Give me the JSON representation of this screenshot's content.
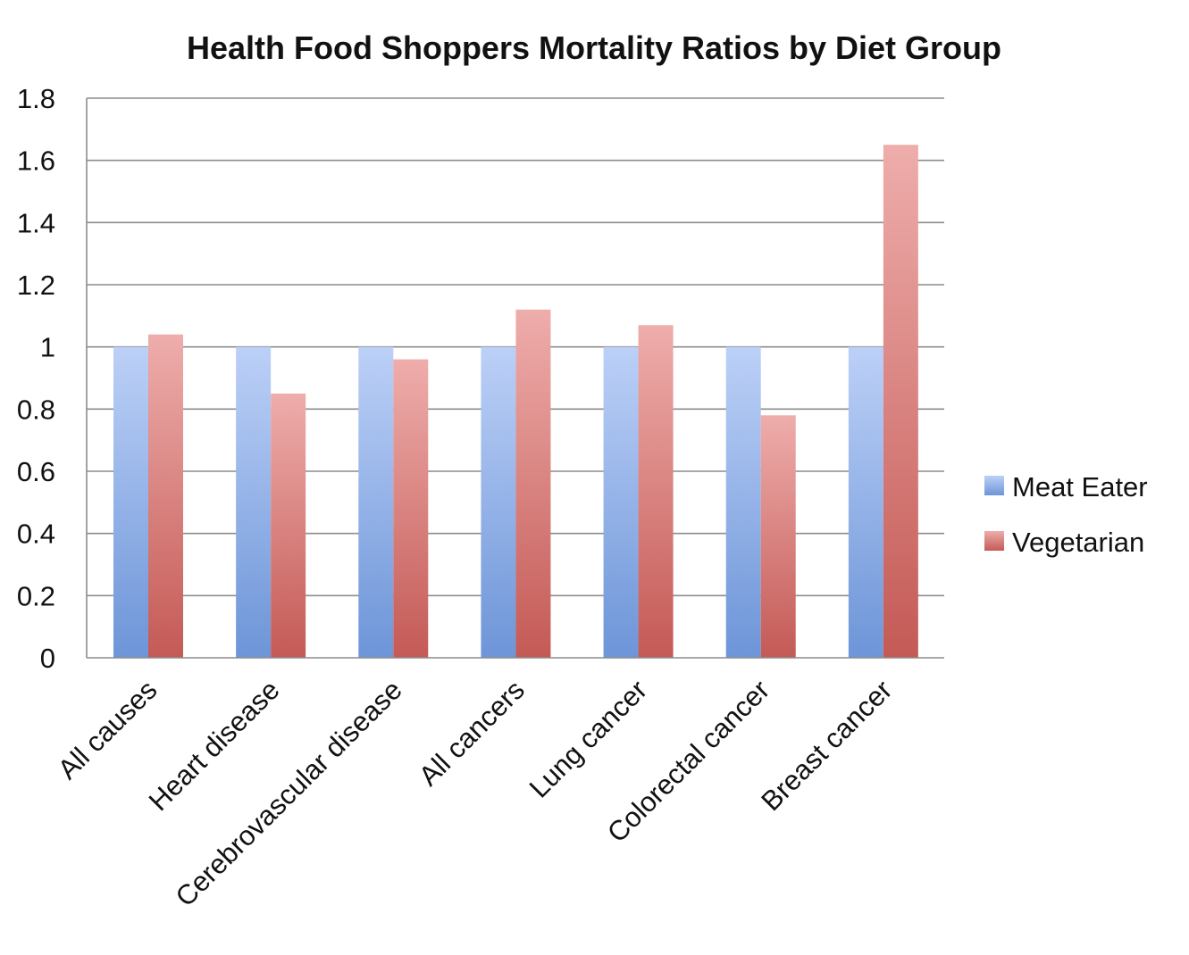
{
  "chart_data": {
    "type": "bar",
    "title": "Health Food Shoppers Mortality Ratios by Diet Group",
    "xlabel": "",
    "ylabel": "",
    "categories": [
      "All causes",
      "Heart disease",
      "Cerebrovascular disease",
      "All cancers",
      "Lung cancer",
      "Colorectal cancer",
      "Breast cancer"
    ],
    "series": [
      {
        "name": "Meat Eater",
        "values": [
          1,
          1,
          1,
          1,
          1,
          1,
          1
        ],
        "color_top": "#bcd0f7",
        "color_bottom": "#6d95d8"
      },
      {
        "name": "Vegetarian",
        "values": [
          1.04,
          0.85,
          0.96,
          1.12,
          1.07,
          0.78,
          1.65
        ],
        "color_top": "#eeadab",
        "color_bottom": "#c45a56"
      }
    ],
    "ylim": [
      0,
      1.8
    ],
    "yticks": [
      "0",
      "0.2",
      "0.4",
      "0.6",
      "0.8",
      "1",
      "1.2",
      "1.4",
      "1.6",
      "1.8"
    ],
    "grid": true,
    "legend_position": "right"
  }
}
